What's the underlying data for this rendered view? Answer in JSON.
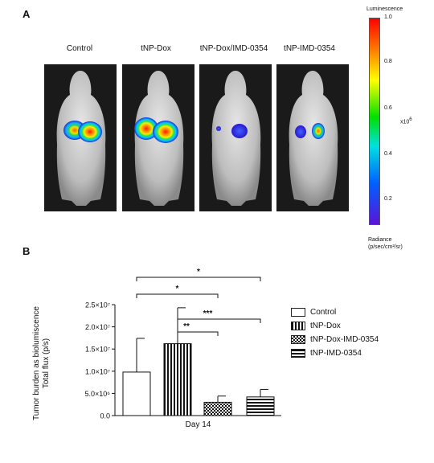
{
  "panel_a": {
    "letter": "A",
    "groups": [
      "Control",
      "tNP-Dox",
      "tNP-Dox/IMD-0354",
      "tNP-IMD-0354"
    ],
    "colorbar": {
      "title": "Luminescence",
      "ticks": [
        "1.0",
        "0.8",
        "0.6",
        "0.4",
        "0.2"
      ],
      "scale_label": "x10",
      "scale_exp": "6",
      "unit_title": "Radiance",
      "unit": "(p/sec/cm²/sr)"
    }
  },
  "panel_b": {
    "letter": "B",
    "significance": [
      "*",
      "*",
      "***",
      "**"
    ]
  },
  "chart_data": {
    "type": "bar",
    "ylabel_line1": "Tumor burden as biolumiscence",
    "ylabel_line2": "Total flux (p/s)",
    "xlabel": "Day 14",
    "ylim": [
      0,
      25000000
    ],
    "yticks": [
      "0.0",
      "5.0×10⁶",
      "1.0×10⁷",
      "1.5×10⁷",
      "2.0×10⁷",
      "2.5×10⁷"
    ],
    "ytick_values": [
      0,
      5000000,
      10000000,
      15000000,
      20000000,
      25000000
    ],
    "series": [
      {
        "name": "Control",
        "value": 9800000,
        "error": 7600000,
        "pattern": "open"
      },
      {
        "name": "tNP-Dox",
        "value": 16200000,
        "error": 8100000,
        "pattern": "vertical"
      },
      {
        "name": "tNP-Dox-IMD-0354",
        "value": 3000000,
        "error": 1400000,
        "pattern": "checker"
      },
      {
        "name": "tNP-IMD-0354",
        "value": 4200000,
        "error": 1700000,
        "pattern": "horizontal"
      }
    ],
    "brackets": [
      {
        "from": 0,
        "to": 3,
        "label": "*"
      },
      {
        "from": 0,
        "to": 2,
        "label": "*"
      },
      {
        "from": 1,
        "to": 3,
        "label": "***"
      },
      {
        "from": 1,
        "to": 2,
        "label": "**"
      }
    ]
  }
}
